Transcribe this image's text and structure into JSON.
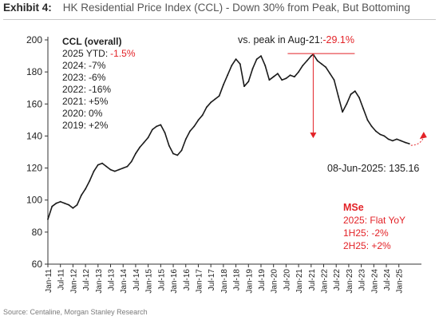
{
  "header": {
    "label": "Exhibit 4:",
    "title": "HK Residential Price Index (CCL) - Down 30% from Peak, But Bottoming"
  },
  "source": "Source: Centaline, Morgan Stanley Research",
  "colors": {
    "line": "#1a1a1a",
    "accent": "#e32227",
    "axis": "#333333"
  },
  "chart_data": {
    "type": "line",
    "y_ticks": [
      60,
      80,
      100,
      120,
      140,
      160,
      180,
      200
    ],
    "ylim": [
      60,
      200
    ],
    "x_tick_labels": [
      "Jan-11",
      "Jul-11",
      "Jan-12",
      "Jul-12",
      "Jan-13",
      "Jul-13",
      "Jan-14",
      "Jul-14",
      "Jan-15",
      "Jul-15",
      "Jan-16",
      "Jul-16",
      "Jan-17",
      "Jul-17",
      "Jan-18",
      "Jul-18",
      "Jan-19",
      "Jul-19",
      "Jan-20",
      "Jul-20",
      "Jan-21",
      "Jul-21",
      "Jan-22",
      "Jul-22",
      "Jan-23",
      "Jul-23",
      "Jan-24",
      "Jul-24",
      "Jan-25"
    ],
    "series": [
      {
        "x": [
          "2011-01",
          "2011-03",
          "2011-05",
          "2011-07",
          "2011-09",
          "2011-11",
          "2012-01",
          "2012-03",
          "2012-05",
          "2012-07",
          "2012-09",
          "2012-11",
          "2013-01",
          "2013-03",
          "2013-05",
          "2013-07",
          "2013-09",
          "2013-11",
          "2014-01",
          "2014-03",
          "2014-05",
          "2014-07",
          "2014-09",
          "2014-11",
          "2015-01",
          "2015-03",
          "2015-05",
          "2015-07",
          "2015-09",
          "2015-11",
          "2016-01",
          "2016-03",
          "2016-05",
          "2016-07",
          "2016-09",
          "2016-11",
          "2017-01",
          "2017-03",
          "2017-05",
          "2017-07",
          "2017-09",
          "2017-11",
          "2018-01",
          "2018-03",
          "2018-05",
          "2018-07",
          "2018-09",
          "2018-11",
          "2019-01",
          "2019-03",
          "2019-05",
          "2019-07",
          "2019-09",
          "2019-11",
          "2020-01",
          "2020-03",
          "2020-05",
          "2020-07",
          "2020-09",
          "2020-11",
          "2021-01",
          "2021-03",
          "2021-05",
          "2021-07",
          "2021-08",
          "2021-10",
          "2021-12",
          "2022-02",
          "2022-04",
          "2022-06",
          "2022-08",
          "2022-10",
          "2022-12",
          "2023-02",
          "2023-04",
          "2023-06",
          "2023-08",
          "2023-10",
          "2023-12",
          "2024-02",
          "2024-04",
          "2024-06",
          "2024-08",
          "2024-10",
          "2024-12",
          "2025-02",
          "2025-04",
          "2025-06"
        ],
        "values": [
          88,
          96,
          98,
          99,
          98,
          97,
          95,
          97,
          103,
          107,
          112,
          118,
          122,
          123,
          121,
          119,
          118,
          119,
          120,
          121,
          124,
          129,
          133,
          136,
          139,
          144,
          146,
          147,
          142,
          134,
          129,
          128,
          131,
          138,
          143,
          146,
          150,
          153,
          158,
          161,
          163,
          165,
          172,
          178,
          184,
          188,
          185,
          171,
          174,
          182,
          188,
          190,
          184,
          175,
          177,
          179,
          175,
          176,
          178,
          177,
          180,
          184,
          187,
          190,
          191,
          187,
          185,
          183,
          179,
          175,
          165,
          155,
          160,
          166,
          168,
          164,
          157,
          150,
          146,
          143,
          141,
          140,
          138,
          137,
          138,
          137,
          136,
          135.16
        ]
      }
    ],
    "peak_annotation": {
      "prefix": "vs. peak in Aug-21:",
      "value": "-29.1%",
      "peak_x": "2021-08",
      "peak_y": 191
    },
    "end_label": "08-Jun-2025: 135.16",
    "ccl_box": {
      "title": "CCL (overall)",
      "lines": [
        {
          "label": "2025 YTD:",
          "value": "-1.5%"
        },
        {
          "label": "2024:",
          "value": "-7%"
        },
        {
          "label": "2023:",
          "value": "-6%"
        },
        {
          "label": "2022:",
          "value": "-16%"
        },
        {
          "label": "2021:",
          "value": "+5%"
        },
        {
          "label": "2020:",
          "value": "0%"
        },
        {
          "label": "2019:",
          "value": "+2%"
        }
      ]
    },
    "mse_box": {
      "title": "MSe",
      "lines": [
        "2025: Flat YoY",
        "1H25: -2%",
        "2H25: +2%"
      ]
    }
  }
}
